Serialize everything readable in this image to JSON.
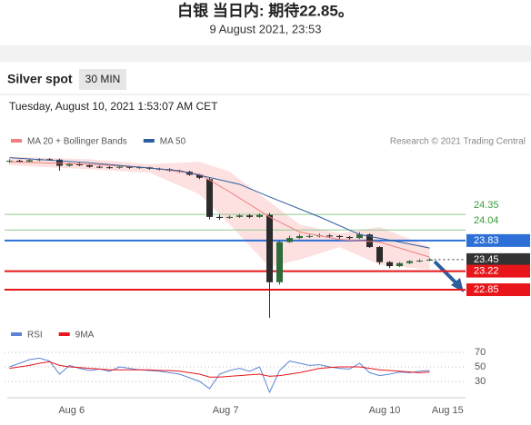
{
  "header": {
    "title": "白银 当日内: 期待22.85。",
    "subtitle": "9 August 2021, 23:53"
  },
  "toolbar": {
    "instrument": "Silver spot",
    "interval": "30 MIN"
  },
  "timestamp": "Tuesday, August 10, 2021 1:53:07 AM CET",
  "credit": "Research © 2021 Trading Central",
  "chart_data": [
    {
      "type": "candlestick",
      "x": [
        0,
        1,
        2,
        3,
        4,
        5,
        6,
        7,
        8,
        9,
        10,
        11,
        12,
        13,
        14,
        15,
        16,
        17,
        18,
        19,
        20,
        21,
        22,
        23,
        24,
        25,
        26,
        27,
        28,
        29,
        30,
        31,
        32,
        33,
        34,
        35,
        36,
        37,
        38,
        39,
        40,
        41,
        42
      ],
      "open": [
        25.4,
        25.42,
        25.4,
        25.43,
        25.45,
        25.44,
        25.32,
        25.36,
        25.33,
        25.3,
        25.29,
        25.28,
        25.3,
        25.28,
        25.29,
        25.26,
        25.25,
        25.22,
        25.2,
        25.14,
        25.05,
        24.3,
        24.28,
        24.3,
        24.33,
        24.3,
        24.34,
        23.0,
        23.8,
        23.88,
        23.92,
        23.92,
        23.93,
        23.92,
        23.9,
        23.88,
        23.95,
        23.7,
        23.4,
        23.32,
        23.38,
        23.42,
        23.43
      ],
      "high": [
        25.45,
        25.44,
        25.45,
        25.47,
        25.47,
        25.46,
        25.38,
        25.38,
        25.35,
        25.32,
        25.31,
        25.32,
        25.32,
        25.31,
        25.3,
        25.28,
        25.27,
        25.24,
        25.22,
        25.16,
        25.08,
        24.35,
        24.33,
        24.36,
        24.36,
        24.37,
        24.38,
        23.84,
        23.93,
        23.96,
        23.96,
        23.97,
        23.96,
        23.94,
        23.92,
        24.0,
        23.97,
        23.72,
        23.42,
        23.4,
        23.44,
        23.46,
        23.48
      ],
      "low": [
        25.37,
        25.38,
        25.38,
        25.41,
        25.42,
        25.22,
        25.3,
        25.31,
        25.28,
        25.27,
        25.26,
        25.26,
        25.26,
        25.26,
        25.24,
        25.23,
        25.2,
        25.18,
        25.12,
        25.05,
        24.25,
        24.24,
        24.26,
        24.28,
        24.27,
        24.28,
        22.29,
        22.95,
        23.78,
        23.86,
        23.88,
        23.89,
        23.88,
        23.86,
        23.85,
        23.86,
        23.68,
        23.35,
        23.28,
        23.3,
        23.36,
        23.4,
        23.42
      ],
      "close": [
        25.42,
        25.4,
        25.43,
        25.45,
        25.44,
        25.32,
        25.36,
        25.33,
        25.3,
        25.29,
        25.28,
        25.3,
        25.28,
        25.29,
        25.26,
        25.25,
        25.22,
        25.2,
        25.14,
        25.08,
        24.3,
        24.28,
        24.3,
        24.33,
        24.3,
        24.34,
        23.0,
        23.8,
        23.88,
        23.92,
        23.92,
        23.93,
        23.92,
        23.9,
        23.88,
        23.95,
        23.7,
        23.4,
        23.32,
        23.38,
        23.42,
        23.43,
        23.45
      ],
      "up_color": "#2f6b3a",
      "down_color": "#2b2b2b",
      "xlim": [
        -0.5,
        45.5
      ],
      "ylim": [
        22.29,
        25.51
      ],
      "overlays": [
        {
          "name": "MA 20 + Bollinger Bands",
          "color": "#f08080",
          "band_color": "#fde0e0",
          "x": [
            0,
            8,
            14,
            19,
            22,
            26,
            29,
            33,
            37,
            42
          ],
          "values": [
            25.4,
            25.35,
            25.28,
            25.15,
            24.8,
            24.3,
            24.0,
            23.85,
            23.8,
            23.5
          ],
          "upper": [
            25.5,
            25.45,
            25.35,
            25.4,
            25.2,
            24.6,
            24.15,
            23.97,
            24.1,
            23.7
          ],
          "lower": [
            25.33,
            25.25,
            25.18,
            24.75,
            24.15,
            23.3,
            23.45,
            23.7,
            23.35,
            23.25
          ]
        },
        {
          "name": "MA 50",
          "color": "#2c5f9e",
          "x": [
            0,
            8,
            17,
            23,
            26,
            31,
            35,
            39,
            42
          ],
          "values": [
            25.48,
            25.38,
            25.22,
            24.95,
            24.7,
            24.3,
            23.95,
            23.8,
            23.68
          ]
        }
      ],
      "levels": [
        {
          "value": 24.35,
          "color": "#8fc98f",
          "text_color": "#3a9a3a",
          "box": false,
          "dotted": false
        },
        {
          "value": 24.04,
          "color": "#8fc98f",
          "text_color": "#3a9a3a",
          "box": false,
          "dotted": false
        },
        {
          "value": 23.83,
          "color": "#2c6fd6",
          "text_color": "#ffffff",
          "box": true,
          "dotted": false
        },
        {
          "value": 23.45,
          "color": "#333333",
          "text_color": "#ffffff",
          "box": true,
          "dotted": true
        },
        {
          "value": 23.22,
          "color": "#e8161b",
          "text_color": "#ffffff",
          "box": true,
          "dotted": false
        },
        {
          "value": 22.85,
          "color": "#e8161b",
          "text_color": "#ffffff",
          "box": true,
          "dotted": false
        }
      ]
    },
    {
      "type": "line",
      "x": [
        0,
        1,
        2,
        3,
        4,
        5,
        6,
        7,
        8,
        9,
        10,
        11,
        12,
        13,
        14,
        15,
        16,
        17,
        18,
        19,
        20,
        21,
        22,
        23,
        24,
        25,
        26,
        27,
        28,
        29,
        30,
        31,
        32,
        33,
        34,
        35,
        36,
        37,
        38,
        39,
        40,
        41,
        42
      ],
      "series": [
        {
          "name": "RSI",
          "color": "#5b84d6",
          "values": [
            50,
            55,
            60,
            62,
            58,
            40,
            52,
            48,
            45,
            47,
            44,
            50,
            48,
            46,
            45,
            44,
            42,
            40,
            35,
            30,
            20,
            40,
            45,
            48,
            44,
            50,
            15,
            45,
            58,
            55,
            52,
            53,
            50,
            48,
            47,
            55,
            42,
            38,
            40,
            43,
            42,
            44,
            45
          ]
        },
        {
          "name": "9MA",
          "color": "#e8161b",
          "values": [
            48,
            50,
            52,
            55,
            57,
            52,
            50,
            49,
            48,
            47,
            46,
            46,
            46,
            46,
            46,
            45,
            45,
            44,
            42,
            40,
            36,
            36,
            37,
            38,
            39,
            40,
            37,
            38,
            40,
            42,
            45,
            48,
            49,
            50,
            50,
            50,
            48,
            46,
            45,
            44,
            43,
            42,
            43
          ]
        }
      ],
      "xlim": [
        -0.5,
        45.5
      ],
      "ylim": [
        7.5,
        105
      ],
      "yticks": [
        30,
        50,
        70
      ],
      "xticks": [
        {
          "value": 6.2,
          "label": "Aug 6"
        },
        {
          "value": 21.6,
          "label": "Aug 7"
        },
        {
          "value": 37.5,
          "label": "Aug 10"
        },
        {
          "value": 43.8,
          "label": "Aug 15"
        }
      ],
      "grid": true
    }
  ]
}
